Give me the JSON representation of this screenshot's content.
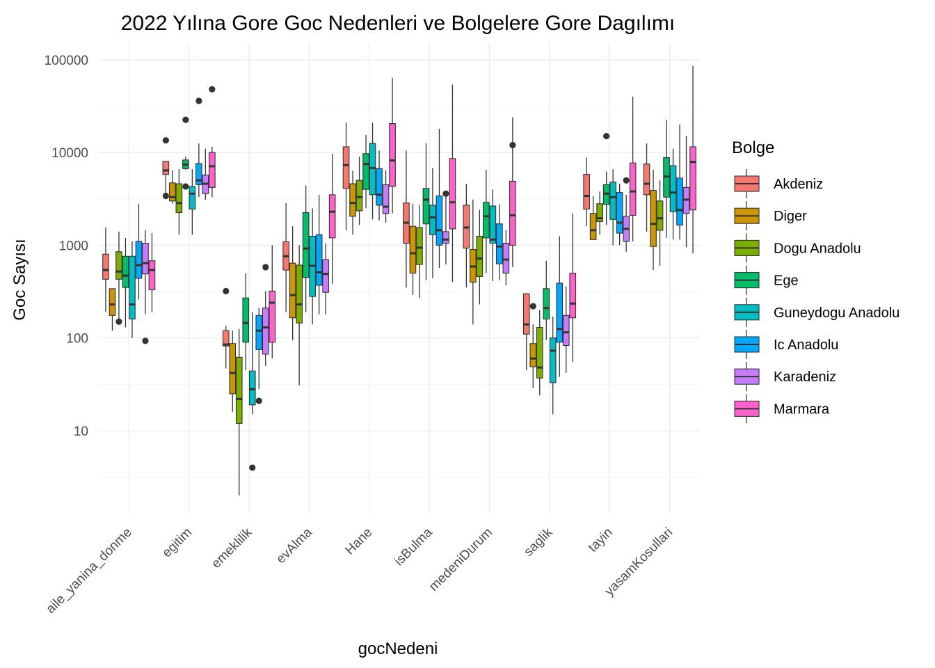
{
  "chart_data": {
    "type": "boxplot",
    "title": "2022 Yılına Gore Goc Nedenleri ve Bolgelere Gore Dagılımı",
    "xlabel": "gocNedeni",
    "ylabel": "Goc Sayısı",
    "y_scale": "log10",
    "ylim": [
      1.35,
      120000
    ],
    "y_ticks": [
      10,
      100,
      1000,
      10000,
      100000
    ],
    "y_tick_labels": [
      "10",
      "100",
      "1000",
      "10000",
      "100000"
    ],
    "grid": true,
    "legend_position": "right",
    "legend_title": "Bolge",
    "categories": [
      "aile_yanina_donme",
      "egitim",
      "emeklilik",
      "evAlma",
      "Hane",
      "isBulma",
      "medeniDurum",
      "saglik",
      "tayin",
      "yasamKosullari"
    ],
    "series": [
      {
        "name": "Akdeniz",
        "color": "#F8766D",
        "boxes": [
          {
            "min": 190,
            "q1": 430,
            "median": 540,
            "q3": 800,
            "max": 1550,
            "outliers": []
          },
          {
            "min": 3500,
            "q1": 5800,
            "median": 6400,
            "q3": 8000,
            "max": 8000,
            "outliers": [
              13500,
              3400
            ]
          },
          {
            "min": 47,
            "q1": 82,
            "median": 85,
            "q3": 120,
            "max": 135,
            "outliers": [
              320
            ]
          },
          {
            "min": 190,
            "q1": 540,
            "median": 760,
            "q3": 1090,
            "max": 2850,
            "outliers": []
          },
          {
            "min": 1450,
            "q1": 4100,
            "median": 7300,
            "q3": 11500,
            "max": 21000,
            "outliers": []
          },
          {
            "min": 350,
            "q1": 1050,
            "median": 1750,
            "q3": 2850,
            "max": 10500,
            "outliers": []
          },
          {
            "min": 350,
            "q1": 930,
            "median": 1550,
            "q3": 2700,
            "max": 4600,
            "outliers": []
          },
          {
            "min": 45,
            "q1": 110,
            "median": 140,
            "q3": 300,
            "max": 300,
            "outliers": []
          },
          {
            "min": 1600,
            "q1": 2450,
            "median": 3400,
            "q3": 5800,
            "max": 8800,
            "outliers": []
          },
          {
            "min": 1400,
            "q1": 3500,
            "median": 4600,
            "q3": 7500,
            "max": 12500,
            "outliers": []
          }
        ]
      },
      {
        "name": "Diger",
        "color": "#CD9600",
        "boxes": [
          {
            "min": 120,
            "q1": 175,
            "median": 230,
            "q3": 340,
            "max": 340,
            "outliers": []
          },
          {
            "min": 2800,
            "q1": 3000,
            "median": 3300,
            "q3": 4700,
            "max": 6400,
            "outliers": []
          },
          {
            "min": 16,
            "q1": 25,
            "median": 42,
            "q3": 87,
            "max": 120,
            "outliers": []
          },
          {
            "min": 95,
            "q1": 165,
            "median": 290,
            "q3": 640,
            "max": 1600,
            "outliers": []
          },
          {
            "min": 1300,
            "q1": 2050,
            "median": 2850,
            "q3": 4600,
            "max": 6300,
            "outliers": []
          },
          {
            "min": 290,
            "q1": 500,
            "median": 820,
            "q3": 1600,
            "max": 2800,
            "outliers": []
          },
          {
            "min": 140,
            "q1": 400,
            "median": 590,
            "q3": 900,
            "max": 3100,
            "outliers": []
          },
          {
            "min": 29,
            "q1": 49,
            "median": 60,
            "q3": 87,
            "max": 140,
            "outliers": [
              220
            ]
          },
          {
            "min": 1150,
            "q1": 1150,
            "median": 1450,
            "q3": 2200,
            "max": 3400,
            "outliers": []
          },
          {
            "min": 540,
            "q1": 970,
            "median": 1700,
            "q3": 3900,
            "max": 6500,
            "outliers": []
          }
        ]
      },
      {
        "name": "Dogu Anadolu",
        "color": "#7CAE00",
        "boxes": [
          {
            "min": 150,
            "q1": 430,
            "median": 520,
            "q3": 850,
            "max": 1400,
            "outliers": [
              150
            ]
          },
          {
            "min": 1300,
            "q1": 2250,
            "median": 2850,
            "q3": 4600,
            "max": 6600,
            "outliers": []
          },
          {
            "min": 2,
            "q1": 12,
            "median": 22,
            "q3": 62,
            "max": 125,
            "outliers": []
          },
          {
            "min": 31,
            "q1": 145,
            "median": 230,
            "q3": 610,
            "max": 1000,
            "outliers": []
          },
          {
            "min": 1650,
            "q1": 2350,
            "median": 3300,
            "q3": 5000,
            "max": 9000,
            "outliers": []
          },
          {
            "min": 270,
            "q1": 620,
            "median": 940,
            "q3": 1550,
            "max": 2700,
            "outliers": []
          },
          {
            "min": 230,
            "q1": 460,
            "median": 720,
            "q3": 1250,
            "max": 2400,
            "outliers": []
          },
          {
            "min": 24,
            "q1": 37,
            "median": 48,
            "q3": 130,
            "max": 200,
            "outliers": []
          },
          {
            "min": 1300,
            "q1": 1800,
            "median": 1950,
            "q3": 2800,
            "max": 3800,
            "outliers": []
          },
          {
            "min": 600,
            "q1": 1450,
            "median": 1950,
            "q3": 3000,
            "max": 5000,
            "outliers": []
          }
        ]
      },
      {
        "name": "Ege",
        "color": "#00BE67",
        "boxes": [
          {
            "min": 130,
            "q1": 350,
            "median": 470,
            "q3": 760,
            "max": 1200,
            "outliers": []
          },
          {
            "min": 6500,
            "q1": 6700,
            "median": 7400,
            "q3": 8300,
            "max": 9000,
            "outliers": [
              4300,
              22500
            ]
          },
          {
            "min": 45,
            "q1": 90,
            "median": 145,
            "q3": 270,
            "max": 500,
            "outliers": []
          },
          {
            "min": 190,
            "q1": 450,
            "median": 920,
            "q3": 2250,
            "max": 4400,
            "outliers": []
          },
          {
            "min": 2500,
            "q1": 4000,
            "median": 7500,
            "q3": 9700,
            "max": 15500,
            "outliers": []
          },
          {
            "min": 420,
            "q1": 1700,
            "median": 3100,
            "q3": 4100,
            "max": 12500,
            "outliers": []
          },
          {
            "min": 500,
            "q1": 1200,
            "median": 2050,
            "q3": 2900,
            "max": 6500,
            "outliers": []
          },
          {
            "min": 95,
            "q1": 160,
            "median": 210,
            "q3": 340,
            "max": 680,
            "outliers": []
          },
          {
            "min": 1650,
            "q1": 2750,
            "median": 3600,
            "q3": 4500,
            "max": 6200,
            "outliers": [
              15000
            ]
          },
          {
            "min": 1200,
            "q1": 3300,
            "median": 5500,
            "q3": 8800,
            "max": 22500,
            "outliers": []
          }
        ]
      },
      {
        "name": "Guneydogu Anadolu",
        "color": "#00BFC4",
        "boxes": [
          {
            "min": 100,
            "q1": 160,
            "median": 230,
            "q3": 760,
            "max": 1100,
            "outliers": []
          },
          {
            "min": 1300,
            "q1": 2450,
            "median": 3600,
            "q3": 4300,
            "max": 6600,
            "outliers": []
          },
          {
            "min": 15,
            "q1": 19,
            "median": 28,
            "q3": 44,
            "max": 190,
            "outliers": [
              4
            ]
          },
          {
            "min": 140,
            "q1": 280,
            "median": 600,
            "q3": 1250,
            "max": 2500,
            "outliers": []
          },
          {
            "min": 1900,
            "q1": 3500,
            "median": 6800,
            "q3": 12500,
            "max": 21000,
            "outliers": []
          },
          {
            "min": 440,
            "q1": 1300,
            "median": 2000,
            "q3": 2700,
            "max": 6800,
            "outliers": []
          },
          {
            "min": 410,
            "q1": 1050,
            "median": 1150,
            "q3": 2650,
            "max": 4000,
            "outliers": []
          },
          {
            "min": 15,
            "q1": 33,
            "median": 73,
            "q3": 100,
            "max": 170,
            "outliers": []
          },
          {
            "min": 1000,
            "q1": 1900,
            "median": 3300,
            "q3": 4800,
            "max": 6600,
            "outliers": []
          },
          {
            "min": 1150,
            "q1": 2300,
            "median": 3700,
            "q3": 7200,
            "max": 11000,
            "outliers": []
          }
        ]
      },
      {
        "name": "Ic Anadolu",
        "color": "#00A9FF",
        "boxes": [
          {
            "min": 260,
            "q1": 440,
            "median": 610,
            "q3": 1100,
            "max": 2800,
            "outliers": []
          },
          {
            "min": 3300,
            "q1": 4500,
            "median": 5000,
            "q3": 7600,
            "max": 12500,
            "outliers": [
              36000
            ]
          },
          {
            "min": 28,
            "q1": 75,
            "median": 120,
            "q3": 175,
            "max": 210,
            "outliers": [
              21
            ]
          },
          {
            "min": 180,
            "q1": 370,
            "median": 510,
            "q3": 1300,
            "max": 3500,
            "outliers": []
          },
          {
            "min": 1850,
            "q1": 2700,
            "median": 3500,
            "q3": 6700,
            "max": 10500,
            "outliers": []
          },
          {
            "min": 570,
            "q1": 1000,
            "median": 1450,
            "q3": 3400,
            "max": 18000,
            "outliers": []
          },
          {
            "min": 420,
            "q1": 630,
            "median": 970,
            "q3": 1700,
            "max": 2750,
            "outliers": []
          },
          {
            "min": 38,
            "q1": 90,
            "median": 125,
            "q3": 390,
            "max": 1250,
            "outliers": []
          },
          {
            "min": 1000,
            "q1": 1350,
            "median": 1750,
            "q3": 3700,
            "max": 4600,
            "outliers": []
          },
          {
            "min": 1150,
            "q1": 1650,
            "median": 2400,
            "q3": 5300,
            "max": 20000,
            "outliers": []
          }
        ]
      },
      {
        "name": "Karadeniz",
        "color": "#C77CFF",
        "boxes": [
          {
            "min": 180,
            "q1": 490,
            "median": 640,
            "q3": 1050,
            "max": 1450,
            "outliers": [
              93
            ]
          },
          {
            "min": 3100,
            "q1": 3600,
            "median": 4600,
            "q3": 5700,
            "max": 11000,
            "outliers": []
          },
          {
            "min": 50,
            "q1": 67,
            "median": 130,
            "q3": 210,
            "max": 320,
            "outliers": [
              580
            ]
          },
          {
            "min": 180,
            "q1": 310,
            "median": 490,
            "q3": 700,
            "max": 1050,
            "outliers": []
          },
          {
            "min": 1750,
            "q1": 2200,
            "median": 2600,
            "q3": 4500,
            "max": 6400,
            "outliers": []
          },
          {
            "min": 620,
            "q1": 1050,
            "median": 1150,
            "q3": 1400,
            "max": 3600,
            "outliers": [
              3600
            ]
          },
          {
            "min": 370,
            "q1": 500,
            "median": 700,
            "q3": 1050,
            "max": 1450,
            "outliers": []
          },
          {
            "min": 42,
            "q1": 83,
            "median": 115,
            "q3": 175,
            "max": 360,
            "outliers": []
          },
          {
            "min": 850,
            "q1": 1100,
            "median": 1500,
            "q3": 2050,
            "max": 3500,
            "outliers": [
              5000
            ]
          },
          {
            "min": 950,
            "q1": 2200,
            "median": 3100,
            "q3": 4200,
            "max": 15000,
            "outliers": []
          }
        ]
      },
      {
        "name": "Marmara",
        "color": "#FF61CC",
        "boxes": [
          {
            "min": 190,
            "q1": 330,
            "median": 540,
            "q3": 680,
            "max": 1350,
            "outliers": []
          },
          {
            "min": 3300,
            "q1": 4200,
            "median": 7100,
            "q3": 10000,
            "max": 11500,
            "outliers": [
              48000
            ]
          },
          {
            "min": 60,
            "q1": 90,
            "median": 240,
            "q3": 320,
            "max": 1000,
            "outliers": []
          },
          {
            "min": 380,
            "q1": 1200,
            "median": 2300,
            "q3": 3500,
            "max": 9700,
            "outliers": []
          },
          {
            "min": 2200,
            "q1": 4300,
            "median": 8200,
            "q3": 20500,
            "max": 64000,
            "outliers": []
          },
          {
            "min": 400,
            "q1": 1500,
            "median": 2900,
            "q3": 8600,
            "max": 54000,
            "outliers": []
          },
          {
            "min": 580,
            "q1": 1000,
            "median": 2100,
            "q3": 4900,
            "max": 24000,
            "outliers": [
              12000
            ]
          },
          {
            "min": 55,
            "q1": 165,
            "median": 235,
            "q3": 500,
            "max": 2200,
            "outliers": []
          },
          {
            "min": 1100,
            "q1": 2100,
            "median": 3800,
            "q3": 7700,
            "max": 40000,
            "outliers": []
          },
          {
            "min": 820,
            "q1": 2400,
            "median": 7900,
            "q3": 11500,
            "max": 86000,
            "outliers": []
          }
        ]
      }
    ]
  }
}
